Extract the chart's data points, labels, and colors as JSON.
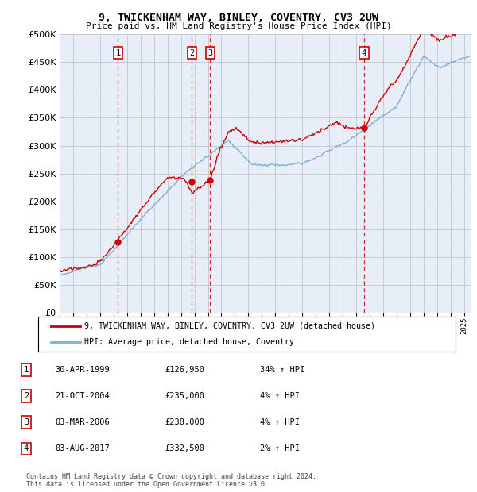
{
  "title": "9, TWICKENHAM WAY, BINLEY, COVENTRY, CV3 2UW",
  "subtitle": "Price paid vs. HM Land Registry's House Price Index (HPI)",
  "ytick_values": [
    0,
    50000,
    100000,
    150000,
    200000,
    250000,
    300000,
    350000,
    400000,
    450000,
    500000
  ],
  "ylim": [
    0,
    500000
  ],
  "xlim_start": 1995.0,
  "xlim_end": 2025.5,
  "transactions": [
    {
      "num": 1,
      "year": 1999.33,
      "price": 126950,
      "label": "1",
      "date": "30-APR-1999",
      "pct": "34%",
      "dir": "↑"
    },
    {
      "num": 2,
      "year": 2004.81,
      "price": 235000,
      "label": "2",
      "date": "21-OCT-2004",
      "pct": "4%",
      "dir": "↑"
    },
    {
      "num": 3,
      "year": 2006.17,
      "price": 238000,
      "label": "3",
      "date": "03-MAR-2006",
      "pct": "4%",
      "dir": "↑"
    },
    {
      "num": 4,
      "year": 2017.58,
      "price": 332500,
      "label": "4",
      "date": "03-AUG-2017",
      "pct": "2%",
      "dir": "↑"
    }
  ],
  "hpi_color": "#7BAFD4",
  "price_color": "#CC0000",
  "dashed_color": "#CC0000",
  "background_color": "#E8EEF8",
  "grid_color": "#BBBBCC",
  "legend_label_price": "9, TWICKENHAM WAY, BINLEY, COVENTRY, CV3 2UW (detached house)",
  "legend_label_hpi": "HPI: Average price, detached house, Coventry",
  "footer": "Contains HM Land Registry data © Crown copyright and database right 2024.\nThis data is licensed under the Open Government Licence v3.0.",
  "table_rows": [
    [
      "1",
      "30-APR-1999",
      "£126,950",
      "34% ↑ HPI"
    ],
    [
      "2",
      "21-OCT-2004",
      "£235,000",
      "4% ↑ HPI"
    ],
    [
      "3",
      "03-MAR-2006",
      "£238,000",
      "4% ↑ HPI"
    ],
    [
      "4",
      "03-AUG-2017",
      "£332,500",
      "2% ↑ HPI"
    ]
  ]
}
